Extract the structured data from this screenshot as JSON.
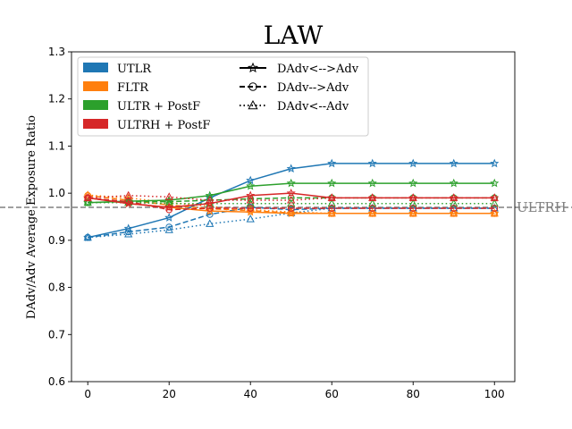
{
  "chart_data": {
    "type": "line",
    "title": "LAW",
    "xlabel": "",
    "ylabel": "DAdv/Adv Average Exposure Ratio",
    "xlim": [
      -4,
      105
    ],
    "ylim": [
      0.6,
      1.3
    ],
    "x_ticks": [
      0,
      20,
      40,
      60,
      80,
      100
    ],
    "y_ticks": [
      "0.6",
      "0.7",
      "0.8",
      "0.9",
      "1.0",
      "1.1",
      "1.2",
      "1.3"
    ],
    "y_tick_values": [
      0.6,
      0.7,
      0.8,
      0.9,
      1.0,
      1.1,
      1.2,
      1.3
    ],
    "x": [
      0,
      10,
      20,
      30,
      40,
      50,
      60,
      70,
      80,
      90,
      100
    ],
    "reference_line": {
      "value": 0.97,
      "label": "ULTRH",
      "color": "#808080"
    },
    "colors": {
      "UTLR": "#1f77b4",
      "FLTR": "#ff7f0e",
      "ULTR + PostF": "#2ca02c",
      "ULTRH + PostF": "#d62728"
    },
    "models": [
      "UTLR",
      "FLTR",
      "ULTR + PostF",
      "ULTRH + PostF"
    ],
    "line_styles": [
      "DAdv<-->Adv",
      "DAdv-->Adv",
      "DAdv<--Adv"
    ],
    "legend": {
      "position": "upper-left",
      "models": [
        "UTLR",
        "FLTR",
        "ULTR + PostF",
        "ULTRH + PostF"
      ],
      "styles": [
        "DAdv<-->Adv",
        "DAdv-->Adv",
        "DAdv<--Adv"
      ]
    },
    "series": [
      {
        "model": "UTLR",
        "style": "DAdv<-->Adv",
        "values": [
          0.906,
          0.925,
          0.948,
          0.99,
          1.027,
          1.052,
          1.063,
          1.063,
          1.063,
          1.063,
          1.063
        ]
      },
      {
        "model": "UTLR",
        "style": "DAdv-->Adv",
        "values": [
          0.906,
          0.918,
          0.928,
          0.955,
          0.97,
          0.965,
          0.968,
          0.968,
          0.968,
          0.968,
          0.968
        ]
      },
      {
        "model": "UTLR",
        "style": "DAdv<--Adv",
        "values": [
          0.906,
          0.913,
          0.922,
          0.935,
          0.945,
          0.958,
          0.968,
          0.968,
          0.968,
          0.968,
          0.968
        ]
      },
      {
        "model": "FLTR",
        "style": "DAdv<-->Adv",
        "values": [
          0.99,
          0.978,
          0.97,
          0.962,
          0.96,
          0.957,
          0.957,
          0.957,
          0.957,
          0.957,
          0.957
        ]
      },
      {
        "model": "FLTR",
        "style": "DAdv-->Adv",
        "values": [
          0.995,
          0.985,
          0.975,
          0.967,
          0.963,
          0.958,
          0.957,
          0.957,
          0.957,
          0.957,
          0.957
        ]
      },
      {
        "model": "FLTR",
        "style": "DAdv<--Adv",
        "values": [
          0.996,
          0.99,
          0.98,
          0.972,
          0.965,
          0.96,
          0.957,
          0.957,
          0.957,
          0.957,
          0.957
        ]
      },
      {
        "model": "ULTR + PostF",
        "style": "DAdv<-->Adv",
        "values": [
          0.98,
          0.983,
          0.985,
          0.995,
          1.015,
          1.021,
          1.021,
          1.021,
          1.021,
          1.021,
          1.021
        ]
      },
      {
        "model": "ULTR + PostF",
        "style": "DAdv-->Adv",
        "values": [
          0.98,
          0.982,
          0.982,
          0.985,
          0.988,
          0.99,
          0.99,
          0.99,
          0.99,
          0.99,
          0.99
        ]
      },
      {
        "model": "ULTR + PostF",
        "style": "DAdv<--Adv",
        "values": [
          0.98,
          0.98,
          0.978,
          0.978,
          0.978,
          0.978,
          0.978,
          0.978,
          0.978,
          0.978,
          0.978
        ]
      },
      {
        "model": "ULTRH + PostF",
        "style": "DAdv<-->Adv",
        "values": [
          0.99,
          0.978,
          0.97,
          0.978,
          0.995,
          1.0,
          0.99,
          0.99,
          0.99,
          0.99,
          0.99
        ]
      },
      {
        "model": "ULTRH + PostF",
        "style": "DAdv-->Adv",
        "values": [
          0.99,
          0.982,
          0.965,
          0.968,
          0.968,
          0.968,
          0.968,
          0.968,
          0.968,
          0.968,
          0.968
        ]
      },
      {
        "model": "ULTRH + PostF",
        "style": "DAdv<--Adv",
        "values": [
          0.99,
          0.995,
          0.992,
          0.985,
          0.985,
          0.985,
          0.99,
          0.99,
          0.99,
          0.99,
          0.99
        ]
      }
    ]
  }
}
